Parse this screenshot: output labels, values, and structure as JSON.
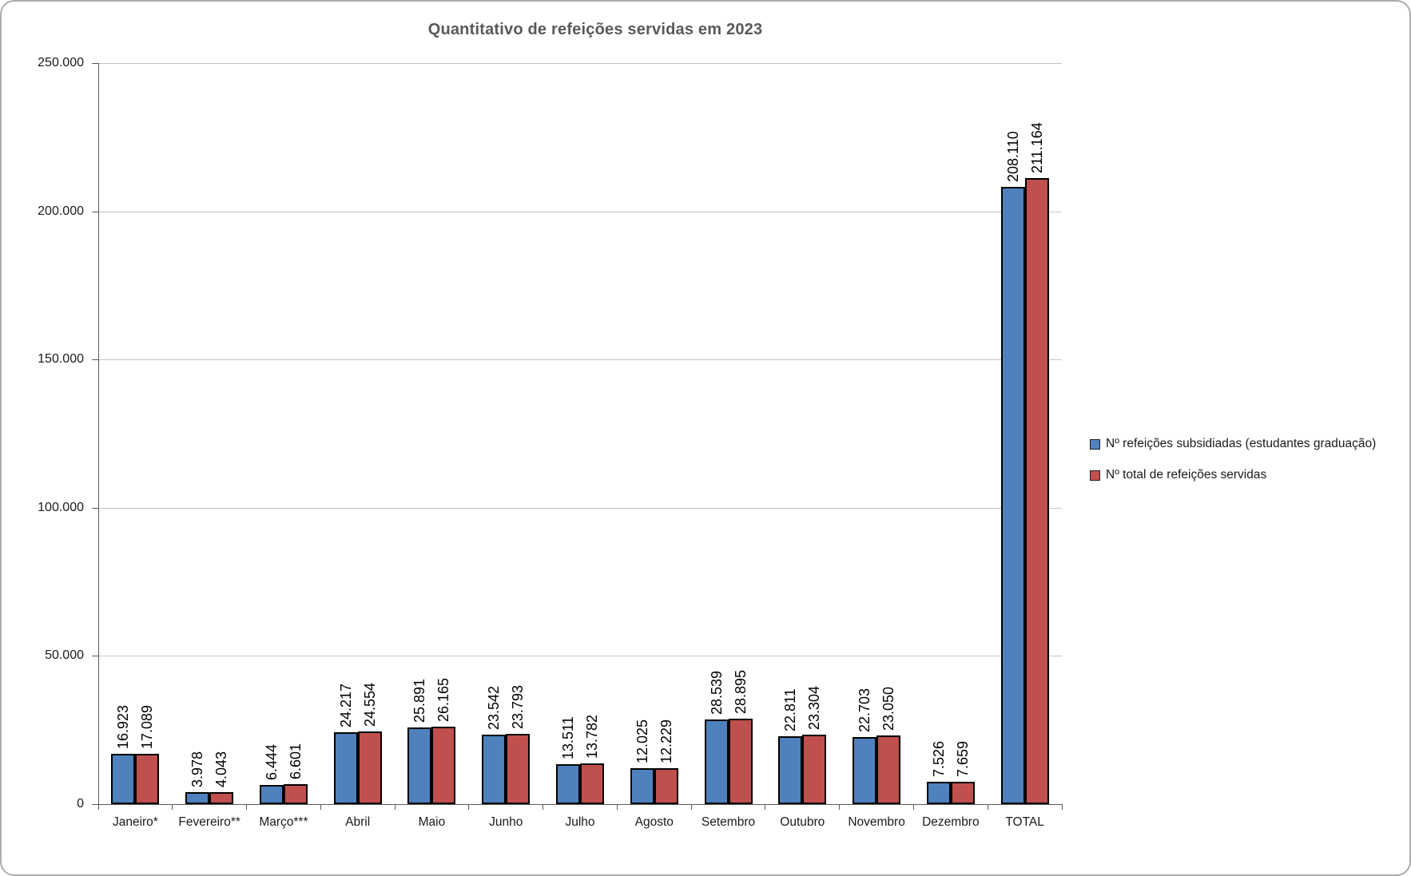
{
  "chart_data": {
    "type": "bar",
    "title": "Quantitativo de refeições servidas em 2023",
    "categories": [
      "Janeiro*",
      "Fevereiro**",
      "Março***",
      "Abril",
      "Maio",
      "Junho",
      "Julho",
      "Agosto",
      "Setembro",
      "Outubro",
      "Novembro",
      "Dezembro",
      "TOTAL"
    ],
    "series": [
      {
        "name": "Nº refeições subsidiadas (estudantes graduação)",
        "color": "#4F81BD",
        "values": [
          16923,
          3978,
          6444,
          24217,
          25891,
          23542,
          13511,
          12025,
          28539,
          22811,
          22703,
          7526,
          208110
        ],
        "labels": [
          "16.923",
          "3.978",
          "6.444",
          "24.217",
          "25.891",
          "23.542",
          "13.511",
          "12.025",
          "28.539",
          "22.811",
          "22.703",
          "7.526",
          "208.110"
        ]
      },
      {
        "name": "Nº total de refeições servidas",
        "color": "#C0504D",
        "values": [
          17089,
          4043,
          6601,
          24554,
          26165,
          23793,
          13782,
          12229,
          28895,
          23304,
          23050,
          7659,
          211164
        ],
        "labels": [
          "17.089",
          "4.043",
          "6.601",
          "24.554",
          "26.165",
          "23.793",
          "13.782",
          "12.229",
          "28.895",
          "23.304",
          "23.050",
          "7.659",
          "211.164"
        ]
      }
    ],
    "ylim": [
      0,
      250000
    ],
    "yticks": [
      {
        "value": 0,
        "label": "0"
      },
      {
        "value": 50000,
        "label": "50.000"
      },
      {
        "value": 100000,
        "label": "100.000"
      },
      {
        "value": 150000,
        "label": "150.000"
      },
      {
        "value": 200000,
        "label": "200.000"
      },
      {
        "value": 250000,
        "label": "250.000"
      }
    ],
    "grid": true,
    "legend_position": "right",
    "bar_border_color": "#000000"
  }
}
